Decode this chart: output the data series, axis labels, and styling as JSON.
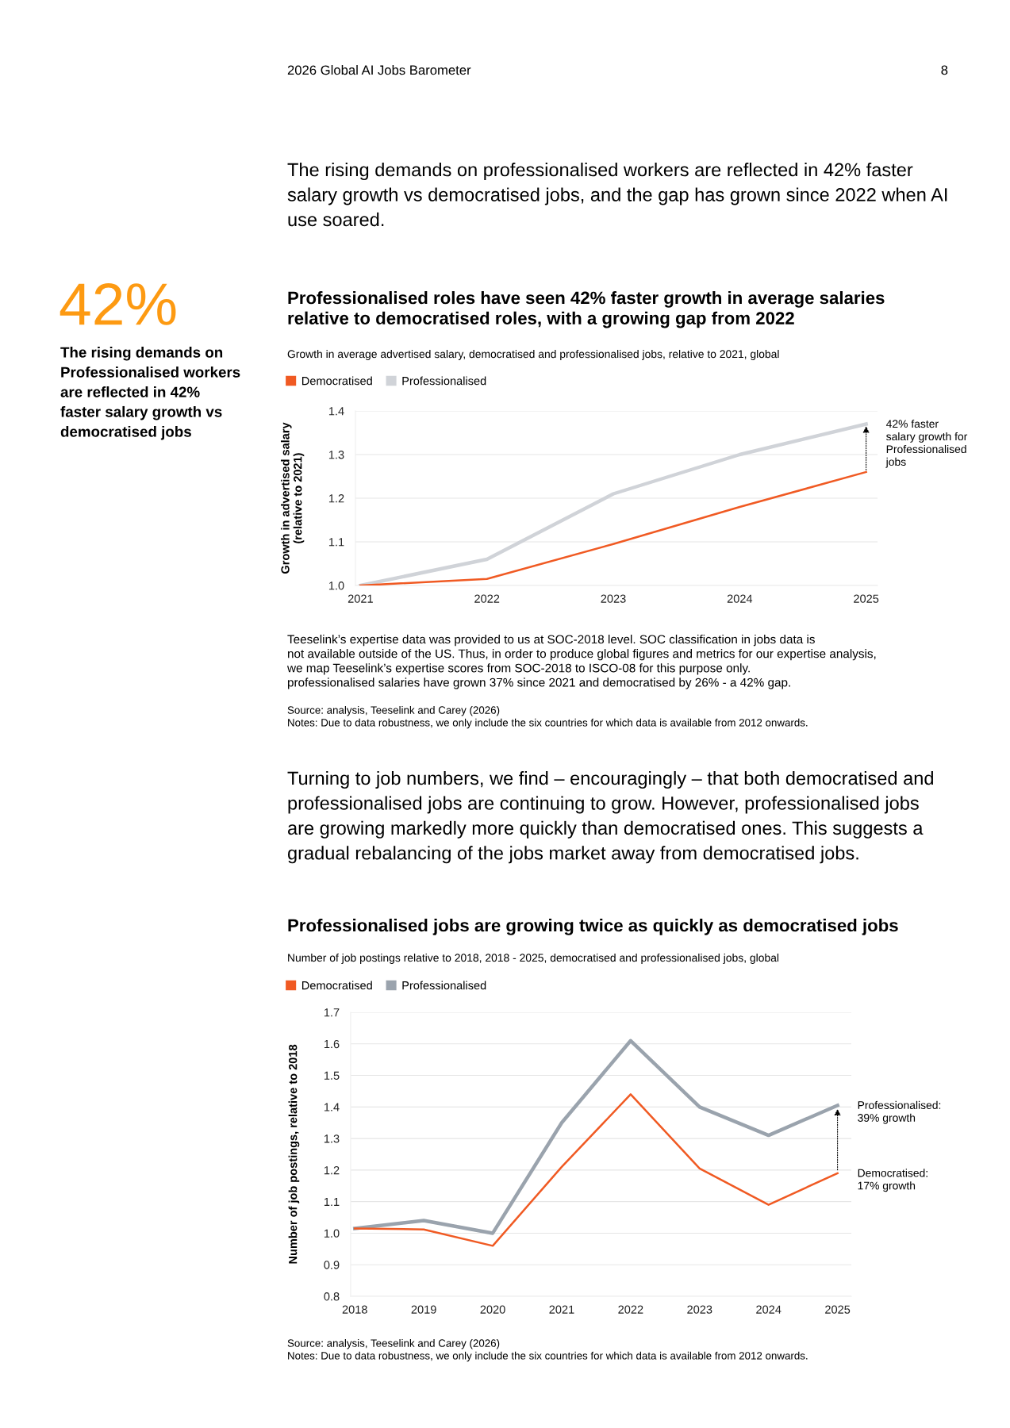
{
  "chart_data": [
    {
      "type": "other",
      "annotations": [
        "2026 Global AI Jobs Barometer",
        "8",
        "The rising demands on professionalised workers are reflected in 42% faster\nsalary growth vs democratised jobs, and the gap has grown since 2022 when AI\nuse soared.",
        "42%",
        "The rising demands on\nProfessionalised workers\nare reflected in 42%\nfaster salary growth vs\ndemocratised jobs",
        "Turning to job numbers, we find – encouragingly – that both democratised and\nprofessionalised jobs are continuing to grow. However, professionalised jobs\nare growing markedly more quickly than democratised ones. This suggests a\ngradual rebalancing of the jobs market away from democratised jobs."
      ]
    },
    {
      "type": "line",
      "title": "Professionalised roles have seen 42% faster growth in average salaries\nrelative to democratised roles, with a growing gap from 2022",
      "subtitle": "Growth in average advertised salary, democratised and professionalised jobs, relative to 2021, global",
      "ylabel": "Growth in advertised salary\n(relative to 2021)",
      "categories": [
        "2021",
        "2022",
        "2023",
        "2024",
        "2025"
      ],
      "series": [
        {
          "name": "Democratised",
          "color": "#f05a23",
          "values": [
            1.0,
            1.015,
            1.095,
            1.18,
            1.26
          ]
        },
        {
          "name": "Professionalised",
          "color": "#d0d3d8",
          "values": [
            1.0,
            1.06,
            1.21,
            1.3,
            1.37
          ]
        }
      ],
      "ylim": [
        1.0,
        1.4
      ],
      "yticks": [
        {
          "value": 1,
          "label": "1.0"
        },
        1.1,
        1.2,
        1.3,
        1.4
      ],
      "grid": "y",
      "legend": "top left",
      "annotations": [
        {
          "text": "42% faster\nsalary growth for\nProfessionalised\njobs",
          "x": "2025",
          "y": 1.37
        },
        "Teeselink’s expertise data was provided to us at SOC-2018 level. SOC classification in jobs data is\nnot available outside of the US. Thus, in order to produce global figures and metrics for our expertise analysis,\nwe map Teeselink’s expertise scores from SOC-2018 to ISCO-08 for this purpose only.\nprofessionalised salaries have grown 37% since 2021 and democratised by 26% - a 42% gap.",
        "Source: analysis, Teeselink and Carey (2026)\nNotes: Due to data robustness, we only include the six countries for which data is available from 2012 onwards."
      ]
    },
    {
      "type": "line",
      "title": "Professionalised jobs are growing twice as quickly as democratised jobs",
      "subtitle": "Number of job postings relative to 2018, 2018 - 2025, democratised and professionalised jobs, global",
      "ylabel": "Number of job postings, relative to 2018",
      "categories": [
        "2018",
        "2019",
        "2020",
        "2021",
        "2022",
        "2023",
        "2024",
        "2025"
      ],
      "series": [
        {
          "name": "Democratised",
          "color": "#f05a23",
          "values": [
            1.015,
            1.012,
            0.96,
            1.21,
            1.44,
            1.205,
            1.09,
            1.19
          ]
        },
        {
          "name": "Professionalised",
          "color": "#9aa3ad",
          "values": [
            1.015,
            1.04,
            1.0,
            1.35,
            1.61,
            1.4,
            1.31,
            1.405
          ]
        }
      ],
      "ylim": [
        0.8,
        1.7
      ],
      "yticks": [
        0.8,
        0.9,
        {
          "value": 1,
          "label": "1.0"
        },
        1.1,
        1.2,
        1.3,
        1.4,
        1.5,
        1.6,
        1.7
      ],
      "grid": "y",
      "legend": "top left",
      "annotations": [
        {
          "text": "Professionalised:\n39% growth",
          "x": "2025",
          "y": 1.405
        },
        {
          "text": "Democratised:\n17% growth",
          "x": "2025",
          "y": 1.19
        },
        "Source: analysis, Teeselink and Carey (2026)\nNotes: Due to data robustness, we only include the six countries for which data is available from 2012 onwards."
      ]
    }
  ]
}
